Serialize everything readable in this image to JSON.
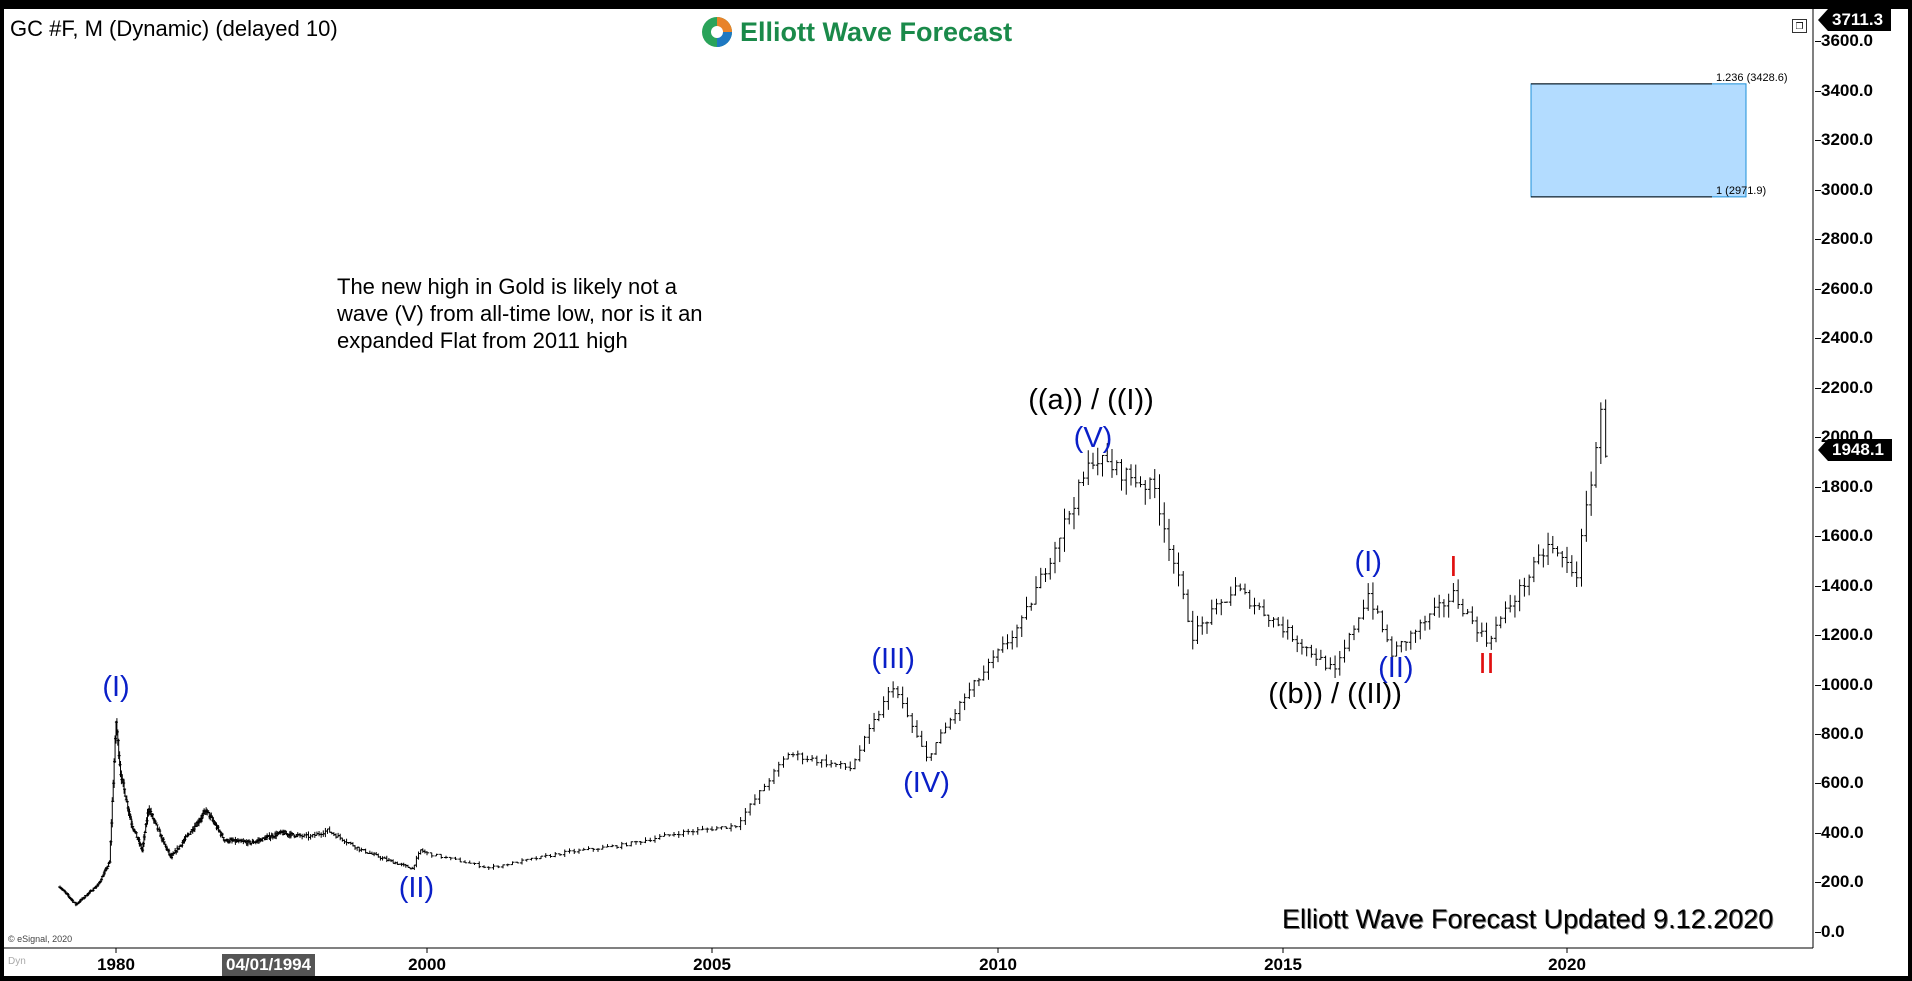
{
  "header": {
    "symbol": "GC #F, M (Dynamic) (delayed 10)",
    "logo_text": "Elliott Wave Forecast"
  },
  "annotation_text": "The new high in Gold is likely not a wave (V) from all-time low, nor is it an expanded Flat from 2011 high",
  "footer": {
    "update_text": "Elliott Wave Forecast Updated 9.12.2020",
    "copyright": "© eSignal, 2020",
    "dyn_label": "Dyn",
    "cursor_date": "04/01/1994"
  },
  "price_badges": {
    "top": "3711.3",
    "last": "1948.1"
  },
  "colors": {
    "blue_labels": "#0a1fc8",
    "red_labels": "#e01010",
    "target_box_fill": "#b3dcff",
    "target_box_border": "#1e90d8",
    "price_bars": "#000000",
    "logo_green": "#1a8a4a"
  },
  "chart_data": {
    "type": "ohlc-bar",
    "title": "GC #F, M (Dynamic) (delayed 10)",
    "y_tick_labels": [
      "0.0",
      "200.0",
      "400.0",
      "600.0",
      "800.0",
      "1000.0",
      "1200.0",
      "1400.0",
      "1600.0",
      "1800.0",
      "2000.0",
      "2200.0",
      "2400.0",
      "2600.0",
      "2800.0",
      "3000.0",
      "3200.0",
      "3400.0",
      "3600.0"
    ],
    "y_ticks": [
      0,
      200,
      400,
      600,
      800,
      1000,
      1200,
      1400,
      1600,
      1800,
      2000,
      2200,
      2400,
      2600,
      2800,
      3000,
      3200,
      3400,
      3600
    ],
    "x_tick_labels": [
      "1980",
      "2000",
      "2005",
      "2010",
      "2015",
      "2020"
    ],
    "x_ticks": [
      1980,
      2000,
      2005,
      2010,
      2015,
      2020
    ],
    "ylim": [
      0,
      3711.3
    ],
    "y_scale": "non-linear (compressed early history)",
    "last_price": 1948.1,
    "price_path": [
      {
        "date": "1975-01",
        "price": 180
      },
      {
        "date": "1976-06",
        "price": 110
      },
      {
        "date": "1977-06",
        "price": 150
      },
      {
        "date": "1978-06",
        "price": 190
      },
      {
        "date": "1979-06",
        "price": 280
      },
      {
        "date": "1980-01",
        "price": 850
      },
      {
        "date": "1980-06",
        "price": 640
      },
      {
        "date": "1981-06",
        "price": 440
      },
      {
        "date": "1982-06",
        "price": 330
      },
      {
        "date": "1983-01",
        "price": 500
      },
      {
        "date": "1984-06",
        "price": 360
      },
      {
        "date": "1985-02",
        "price": 300
      },
      {
        "date": "1987-12",
        "price": 490
      },
      {
        "date": "1989-06",
        "price": 370
      },
      {
        "date": "1991-06",
        "price": 360
      },
      {
        "date": "1993-08",
        "price": 400
      },
      {
        "date": "1995-06",
        "price": 385
      },
      {
        "date": "1996-02",
        "price": 410
      },
      {
        "date": "1997-06",
        "price": 330
      },
      {
        "date": "1998-06",
        "price": 290
      },
      {
        "date": "1999-06",
        "price": 255
      },
      {
        "date": "1999-10",
        "price": 330
      },
      {
        "date": "2001-02",
        "price": 258
      },
      {
        "date": "2002-06",
        "price": 320
      },
      {
        "date": "2003-06",
        "price": 350
      },
      {
        "date": "2004-06",
        "price": 400
      },
      {
        "date": "2005-06",
        "price": 430
      },
      {
        "date": "2006-05",
        "price": 720
      },
      {
        "date": "2007-06",
        "price": 660
      },
      {
        "date": "2008-03",
        "price": 1000
      },
      {
        "date": "2008-10",
        "price": 700
      },
      {
        "date": "2009-06",
        "price": 950
      },
      {
        "date": "2010-06",
        "price": 1250
      },
      {
        "date": "2011-09",
        "price": 1920
      },
      {
        "date": "2012-10",
        "price": 1790
      },
      {
        "date": "2013-06",
        "price": 1200
      },
      {
        "date": "2014-03",
        "price": 1390
      },
      {
        "date": "2015-12",
        "price": 1050
      },
      {
        "date": "2016-07",
        "price": 1370
      },
      {
        "date": "2016-12",
        "price": 1125
      },
      {
        "date": "2018-01",
        "price": 1365
      },
      {
        "date": "2018-08",
        "price": 1175
      },
      {
        "date": "2019-09",
        "price": 1560
      },
      {
        "date": "2020-03",
        "price": 1450
      },
      {
        "date": "2020-08",
        "price": 2089
      },
      {
        "date": "2020-09",
        "price": 1948.1
      }
    ],
    "fib_target_zone": {
      "upper": {
        "label": "1.236 (3428.6)",
        "value": 3428.6
      },
      "lower": {
        "label": "1 (2971.9)",
        "value": 2971.9
      }
    },
    "wave_labels": [
      {
        "text": "(I)",
        "color": "blue",
        "date": "1980-01"
      },
      {
        "text": "(II)",
        "color": "blue",
        "date": "1999-08"
      },
      {
        "text": "(III)",
        "color": "blue",
        "date": "2008-03"
      },
      {
        "text": "(IV)",
        "color": "blue",
        "date": "2008-10"
      },
      {
        "text": "((a)) / ((I))",
        "color": "black",
        "date": "2011-09"
      },
      {
        "text": "(V)",
        "color": "blue",
        "date": "2011-09"
      },
      {
        "text": "((b)) / ((II))",
        "color": "black",
        "date": "2015-12"
      },
      {
        "text": "(I)",
        "color": "blue",
        "date": "2016-07"
      },
      {
        "text": "(II)",
        "color": "blue",
        "date": "2016-12"
      },
      {
        "text": "I",
        "color": "red",
        "date": "2018-01"
      },
      {
        "text": "II",
        "color": "red",
        "date": "2018-08"
      }
    ]
  }
}
